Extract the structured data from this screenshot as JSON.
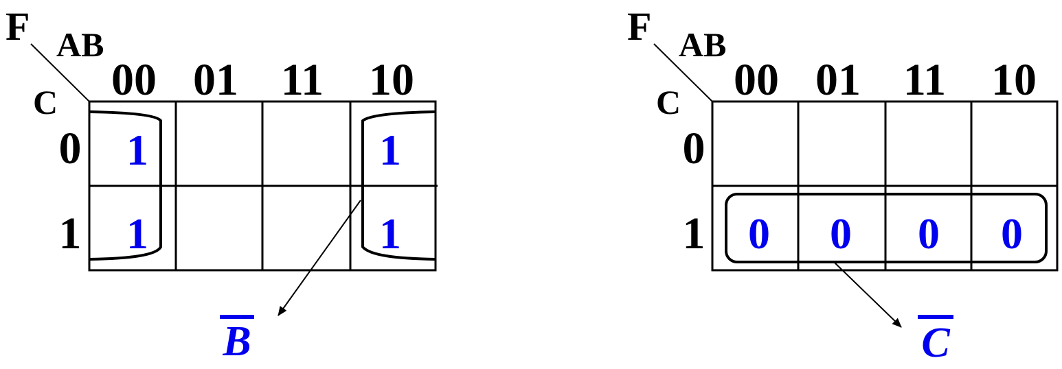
{
  "colors": {
    "ink": "#000000",
    "value": "#0000ee"
  },
  "maps": [
    {
      "function_label": "F",
      "col_var": "AB",
      "row_var": "C",
      "col_headers": [
        "00",
        "01",
        "11",
        "10"
      ],
      "row_headers": [
        "0",
        "1"
      ],
      "cells": [
        [
          "1",
          "",
          "",
          "1"
        ],
        [
          "1",
          "",
          "",
          "1"
        ]
      ],
      "result": "B"
    },
    {
      "function_label": "F",
      "col_var": "AB",
      "row_var": "C",
      "col_headers": [
        "00",
        "01",
        "11",
        "10"
      ],
      "row_headers": [
        "0",
        "1"
      ],
      "cells": [
        [
          "",
          "",
          "",
          ""
        ],
        [
          "0",
          "0",
          "0",
          "0"
        ]
      ],
      "result": "C"
    }
  ]
}
